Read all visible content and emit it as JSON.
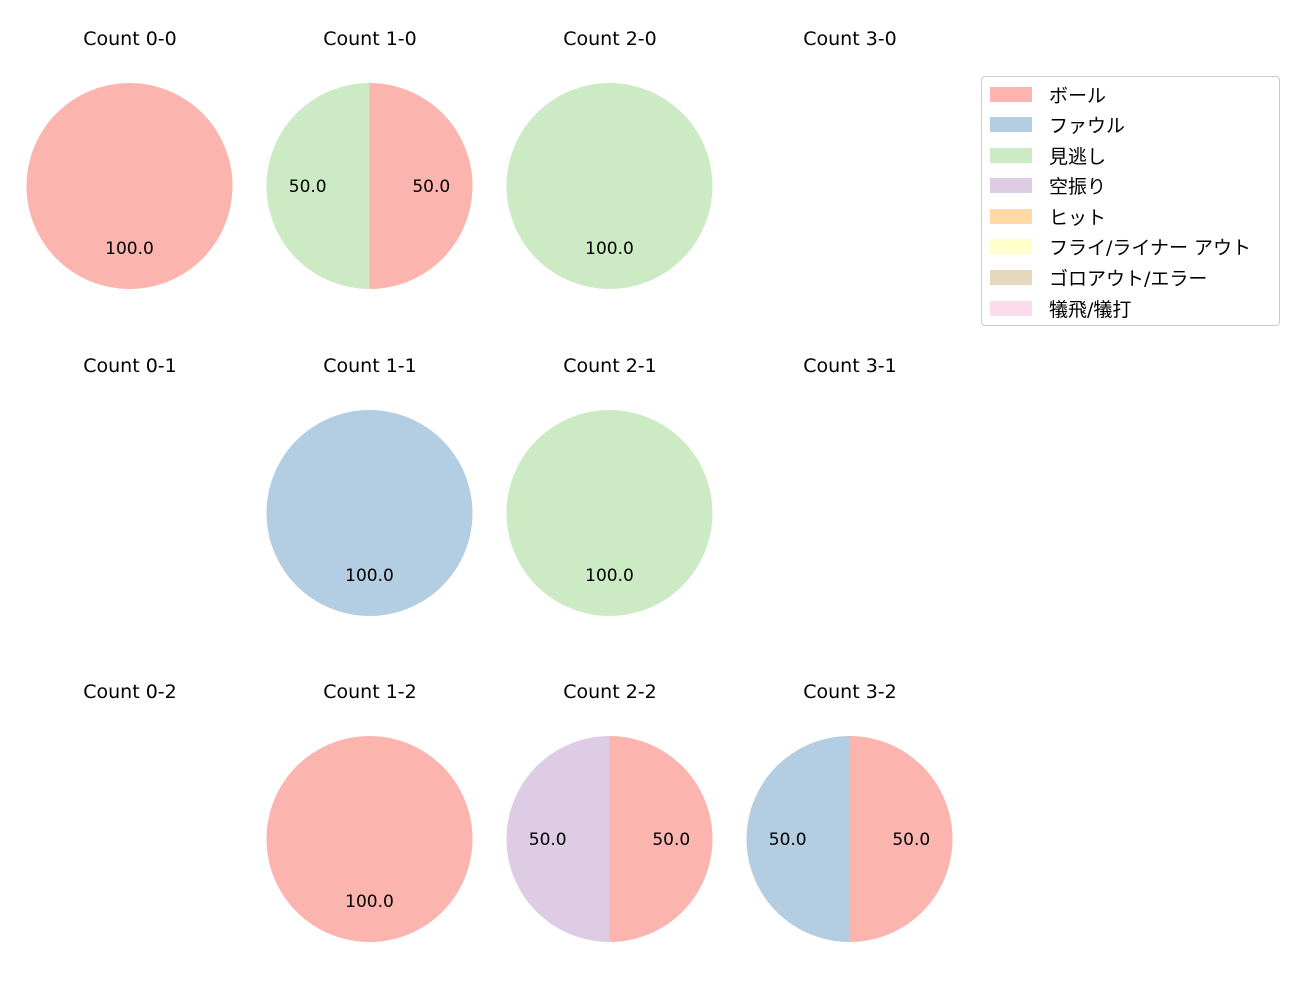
{
  "chart_data": {
    "type": "pie",
    "grid": "3 rows x 4 cols of pie charts",
    "legend_position": "upper right",
    "categories": [
      "ボール",
      "ファウル",
      "見逃し",
      "空振り",
      "ヒット",
      "フライ/ライナー アウト",
      "ゴロアウト/エラー",
      "犠飛/犠打"
    ],
    "colors": [
      "#fbb4ae",
      "#b3cde3",
      "#ccebc5",
      "#decbe4",
      "#fed9a6",
      "#ffffcc",
      "#e5d8bd",
      "#fddaec"
    ],
    "panels": [
      {
        "title": "Count 0-0",
        "row": 0,
        "col": 0,
        "slices": [
          {
            "category": "ボール",
            "value": 100.0,
            "label": "100.0"
          }
        ]
      },
      {
        "title": "Count 1-0",
        "row": 0,
        "col": 1,
        "slices": [
          {
            "category": "ボール",
            "value": 50.0,
            "label": "50.0"
          },
          {
            "category": "見逃し",
            "value": 50.0,
            "label": "50.0"
          }
        ]
      },
      {
        "title": "Count 2-0",
        "row": 0,
        "col": 2,
        "slices": [
          {
            "category": "見逃し",
            "value": 100.0,
            "label": "100.0"
          }
        ]
      },
      {
        "title": "Count 3-0",
        "row": 0,
        "col": 3,
        "slices": []
      },
      {
        "title": "Count 0-1",
        "row": 1,
        "col": 0,
        "slices": []
      },
      {
        "title": "Count 1-1",
        "row": 1,
        "col": 1,
        "slices": [
          {
            "category": "ファウル",
            "value": 100.0,
            "label": "100.0"
          }
        ]
      },
      {
        "title": "Count 2-1",
        "row": 1,
        "col": 2,
        "slices": [
          {
            "category": "見逃し",
            "value": 100.0,
            "label": "100.0"
          }
        ]
      },
      {
        "title": "Count 3-1",
        "row": 1,
        "col": 3,
        "slices": []
      },
      {
        "title": "Count 0-2",
        "row": 2,
        "col": 0,
        "slices": []
      },
      {
        "title": "Count 1-2",
        "row": 2,
        "col": 1,
        "slices": [
          {
            "category": "ボール",
            "value": 100.0,
            "label": "100.0"
          }
        ]
      },
      {
        "title": "Count 2-2",
        "row": 2,
        "col": 2,
        "slices": [
          {
            "category": "ボール",
            "value": 50.0,
            "label": "50.0"
          },
          {
            "category": "空振り",
            "value": 50.0,
            "label": "50.0"
          }
        ]
      },
      {
        "title": "Count 3-2",
        "row": 2,
        "col": 3,
        "slices": [
          {
            "category": "ボール",
            "value": 50.0,
            "label": "50.0"
          },
          {
            "category": "ファウル",
            "value": 50.0,
            "label": "50.0"
          }
        ]
      }
    ]
  },
  "legend": {
    "items": [
      {
        "label": "ボール",
        "color": "#fbb4ae"
      },
      {
        "label": "ファウル",
        "color": "#b3cde3"
      },
      {
        "label": "見逃し",
        "color": "#ccebc5"
      },
      {
        "label": "空振り",
        "color": "#decbe4"
      },
      {
        "label": "ヒット",
        "color": "#fed9a6"
      },
      {
        "label": "フライ/ライナー アウト",
        "color": "#ffffcc"
      },
      {
        "label": "ゴロアウト/エラー",
        "color": "#e5d8bd"
      },
      {
        "label": "犠飛/犠打",
        "color": "#fddaec"
      }
    ]
  }
}
